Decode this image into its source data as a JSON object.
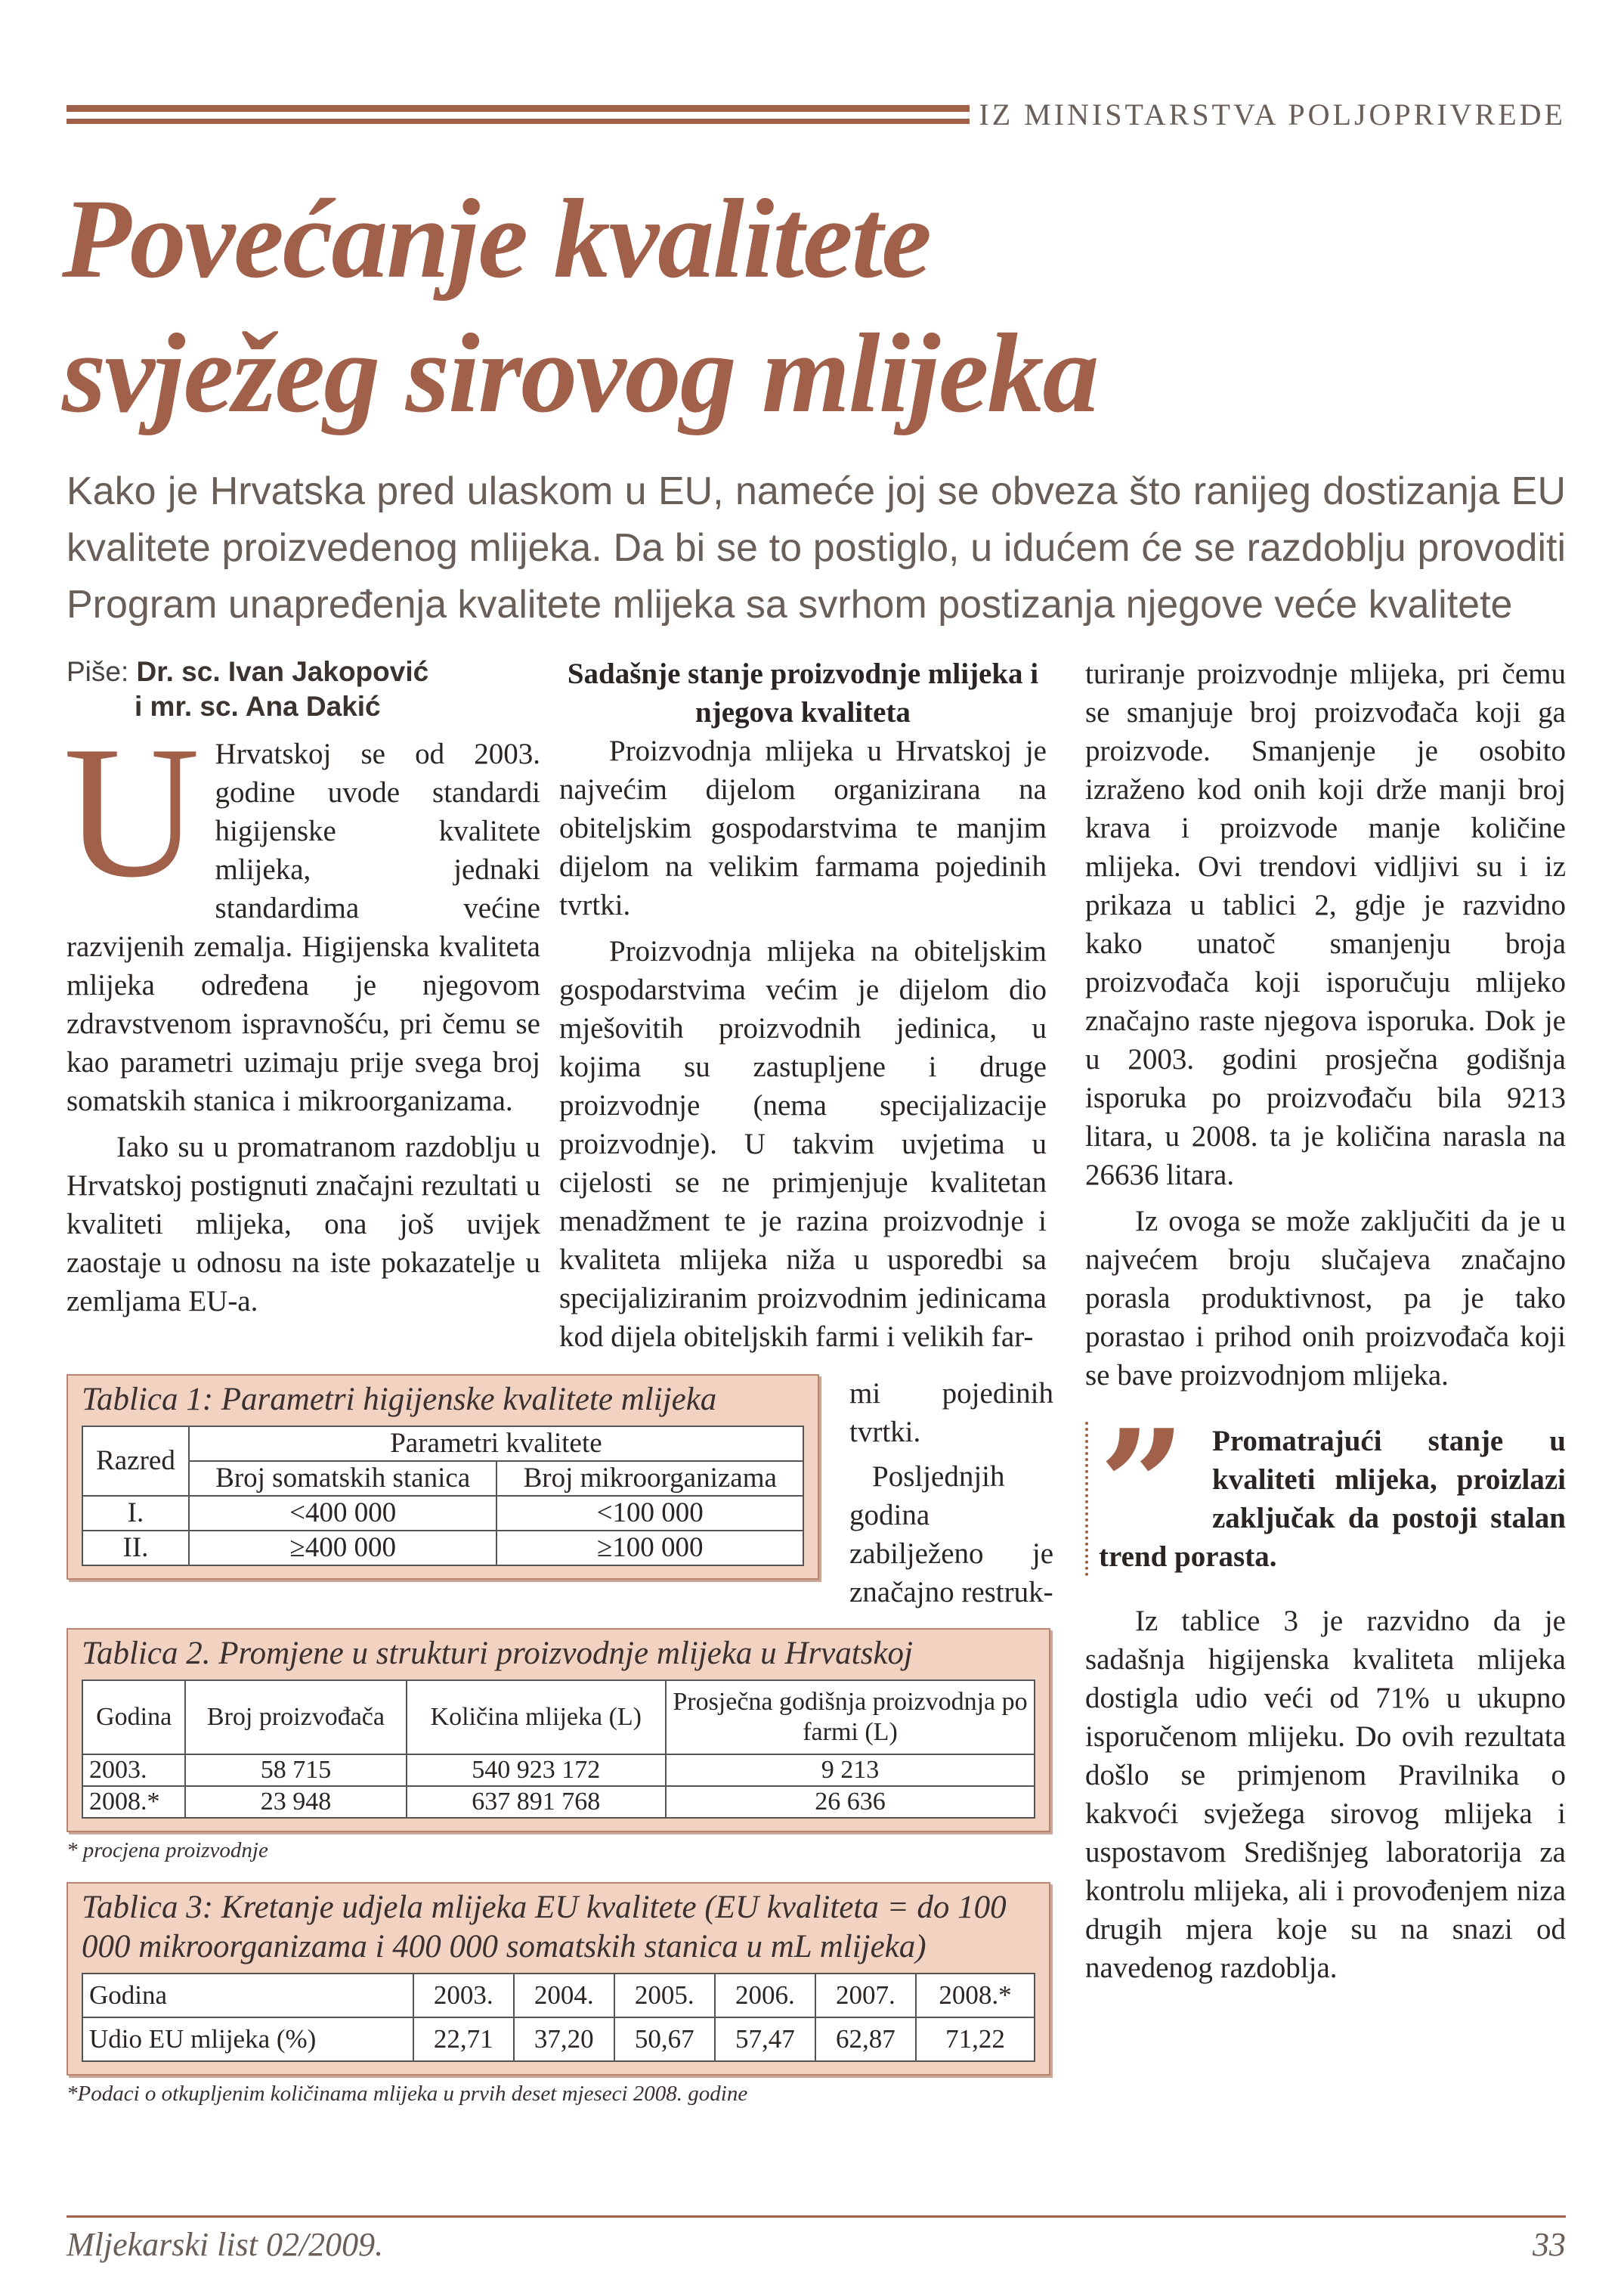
{
  "header": {
    "section": "IZ MINISTARSTVA POLJOPRIVREDE"
  },
  "title": {
    "line1": "Povećanje kvalitete",
    "line2": "svježeg sirovog mlijeka"
  },
  "lead": "Kako je Hrvatska pred ulaskom u EU, nameće joj se obveza što ranijeg dostizanja EU kvalitete proizvedenog mlijeka. Da bi se to postiglo, u idućem će se razdoblju provoditi Program unapređenja kvalitete mlijeka sa svrhom postizanja njegove veće kvalitete",
  "author": {
    "prefix": "Piše:",
    "line1": "Dr. sc. Ivan Jakopović",
    "line2": "i mr. sc. Ana Dakić"
  },
  "col1": {
    "dropcap": "U",
    "p1": "Hrvatskoj se od 2003. godine uvode standardi higijenske kvalitete mlijeka, jednaki standardima većine razvijenih zemalja. Higijenska kvaliteta mlijeka određena je njegovom zdravstvenom ispravnošću, pri čemu se kao parametri uzimaju prije svega broj somatskih stanica i mikroorganizama.",
    "p2": "Iako su u promatranom razdoblju u Hrvatskoj postignuti značajni rezultati u kvaliteti mlijeka, ona još uvijek zaostaje u odnosu na iste pokazatelje u zemljama EU-a."
  },
  "col2": {
    "subhead": "Sadašnje stanje proizvodnje mlijeka i njegova kvaliteta",
    "p1": "Proizvodnja mlijeka u Hrvatskoj je najvećim dijelom organizirana na obiteljskim gospodarstvima te manjim dijelom na velikim farmama pojedinih tvrtki.",
    "p2": "Proizvodnja mlijeka na obiteljskim gospodarstvima većim je dijelom dio mješovitih proizvodnih jedinica, u kojima su zastupljene i druge proizvodnje (nema specijalizacije proizvodnje). U takvim uvjetima u cijelosti se ne primjenjuje kvalitetan menadžment te je razina proizvodnje i kvaliteta mlijeka niža u usporedbi sa specijaliziranim proizvodnim jedinicama kod dijela obiteljskih farmi i velikih far-",
    "cont": "mi pojedinih tvrtki.",
    "p3": "Posljednjih godina zabilježeno je značajno restruk-"
  },
  "col3": {
    "p1": "turiranje proizvodnje mlijeka, pri čemu se smanjuje broj proizvođača koji ga proizvode. Smanjenje je osobito izraženo kod onih koji drže manji broj krava i proizvode manje količine mlijeka. Ovi trendovi vidljivi su i iz prikaza u tablici 2, gdje je razvidno kako unatoč smanjenju broja proizvođača koji isporučuju mlijeko značajno raste njegova isporuka. Dok je u 2003. godini prosječna godišnja isporuka po proizvođaču bila 9213 litara, u 2008. ta je količina narasla na 26636 litara.",
    "p2": "Iz ovoga se može zaključiti da je u najvećem broju slučajeva značajno porasla produktivnost, pa je tako porastao i prihod onih proizvođača koji se bave proizvodnjom mlijeka.",
    "quote": "Promatrajući stanje u kvaliteti mlijeka, proizlazi zaključak da postoji stalan trend porasta.",
    "p3": "Iz tablice 3 je razvidno da je sadašnja higijenska kvaliteta mlijeka dostigla udio veći od 71% u ukupno isporučenom mlijeku. Do ovih rezultata došlo se primjenom Pravilnika o kakvoći svježega sirovog mlijeka i uspostavom Središnjeg laboratorija za kontrolu mlijeka, ali i provođenjem niza drugih mjera koje su na snazi od navedenog razdoblja."
  },
  "table1": {
    "caption": "Tablica 1: Parametri higijenske kvalitete mlijeka",
    "h_razred": "Razred",
    "h_group": "Parametri kvalitete",
    "h_somatic": "Broj somatskih stanica",
    "h_micro": "Broj mikroorganizama",
    "rows": [
      [
        "I.",
        "<400 000",
        "<100 000"
      ],
      [
        "II.",
        "≥400 000",
        "≥100 000"
      ]
    ]
  },
  "table2": {
    "caption": "Tablica 2. Promjene u strukturi proizvodnje mlijeka u Hrvatskoj",
    "headers": [
      "Godina",
      "Broj proizvođača",
      "Količina mlijeka (L)",
      "Prosječna godišnja proizvodnja po farmi (L)"
    ],
    "rows": [
      [
        "2003.",
        "58 715",
        "540 923 172",
        "9 213"
      ],
      [
        "2008.*",
        "23 948",
        "637 891 768",
        "26 636"
      ]
    ],
    "footnote": "* procjena proizvodnje"
  },
  "table3": {
    "caption": "Tablica 3: Kretanje udjela mlijeka EU kvalitete (EU kvaliteta = do 100 000 mikroorganizama i 400 000 somatskih stanica u mL mlijeka)",
    "rows": [
      [
        "Godina",
        "2003.",
        "2004.",
        "2005.",
        "2006.",
        "2007.",
        "2008.*"
      ],
      [
        "Udio EU mlijeka (%)",
        "22,71",
        "37,20",
        "50,67",
        "57,47",
        "62,87",
        "71,22"
      ]
    ],
    "footnote": "*Podaci o otkupljenim količinama mlijeka u prvih deset mjeseci 2008. godine"
  },
  "footer": {
    "publication": "Mljekarski list 02/2009.",
    "page": "33"
  },
  "colors": {
    "accent": "#a0604a",
    "table_fill": "#f2d3c1",
    "lead_text": "#6a5e58"
  }
}
